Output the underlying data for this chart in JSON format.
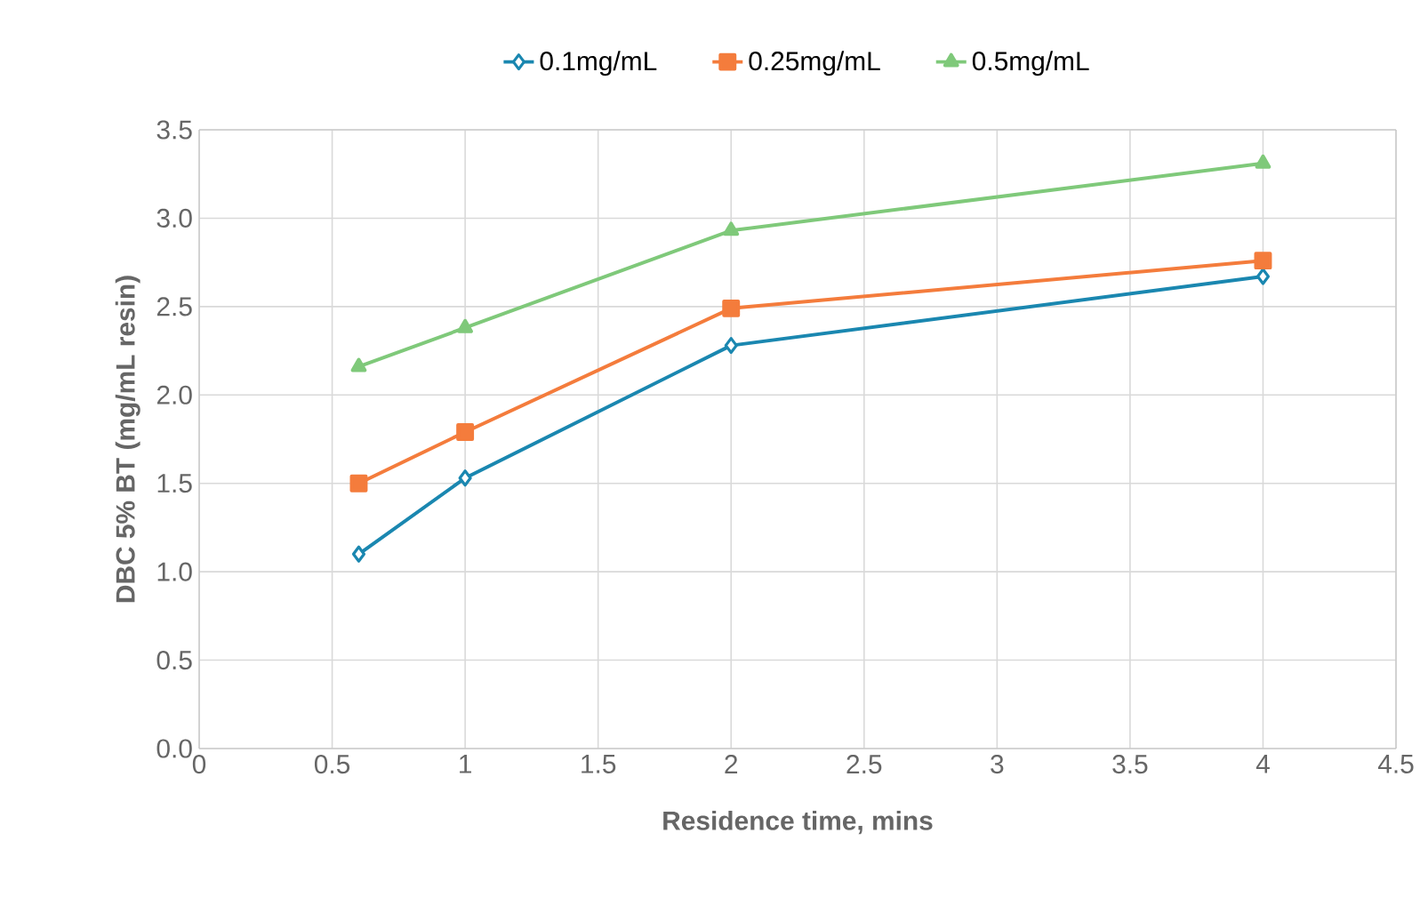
{
  "chart_data": {
    "type": "line",
    "xlabel": "Residence time, mins",
    "ylabel": "DBC 5% BT (mg/mL resin)",
    "x": [
      0.6,
      1,
      2,
      4
    ],
    "series": [
      {
        "name": "0.1mg/mL",
        "color": "#1a87b0",
        "marker": "diamond",
        "values": [
          1.1,
          1.53,
          2.28,
          2.67
        ]
      },
      {
        "name": "0.25mg/mL",
        "color": "#f47c3c",
        "marker": "square",
        "values": [
          1.5,
          1.79,
          2.49,
          2.76
        ]
      },
      {
        "name": "0.5mg/mL",
        "color": "#7fc97a",
        "marker": "triangle",
        "values": [
          2.16,
          2.38,
          2.93,
          3.31
        ]
      }
    ],
    "xlim": [
      0,
      4.5
    ],
    "xticks": [
      0,
      0.5,
      1,
      1.5,
      2,
      2.5,
      3,
      3.5,
      4,
      4.5
    ],
    "ylim": [
      0,
      3.5
    ],
    "yticks": [
      {
        "value": 0,
        "label": "0.0"
      },
      0.5,
      {
        "value": 1,
        "label": "1.0"
      },
      1.5,
      {
        "value": 2,
        "label": "2.0"
      },
      2.5,
      {
        "value": 3,
        "label": "3.0"
      },
      3.5
    ],
    "grid": true,
    "legend": "top",
    "line_style": "solid"
  }
}
